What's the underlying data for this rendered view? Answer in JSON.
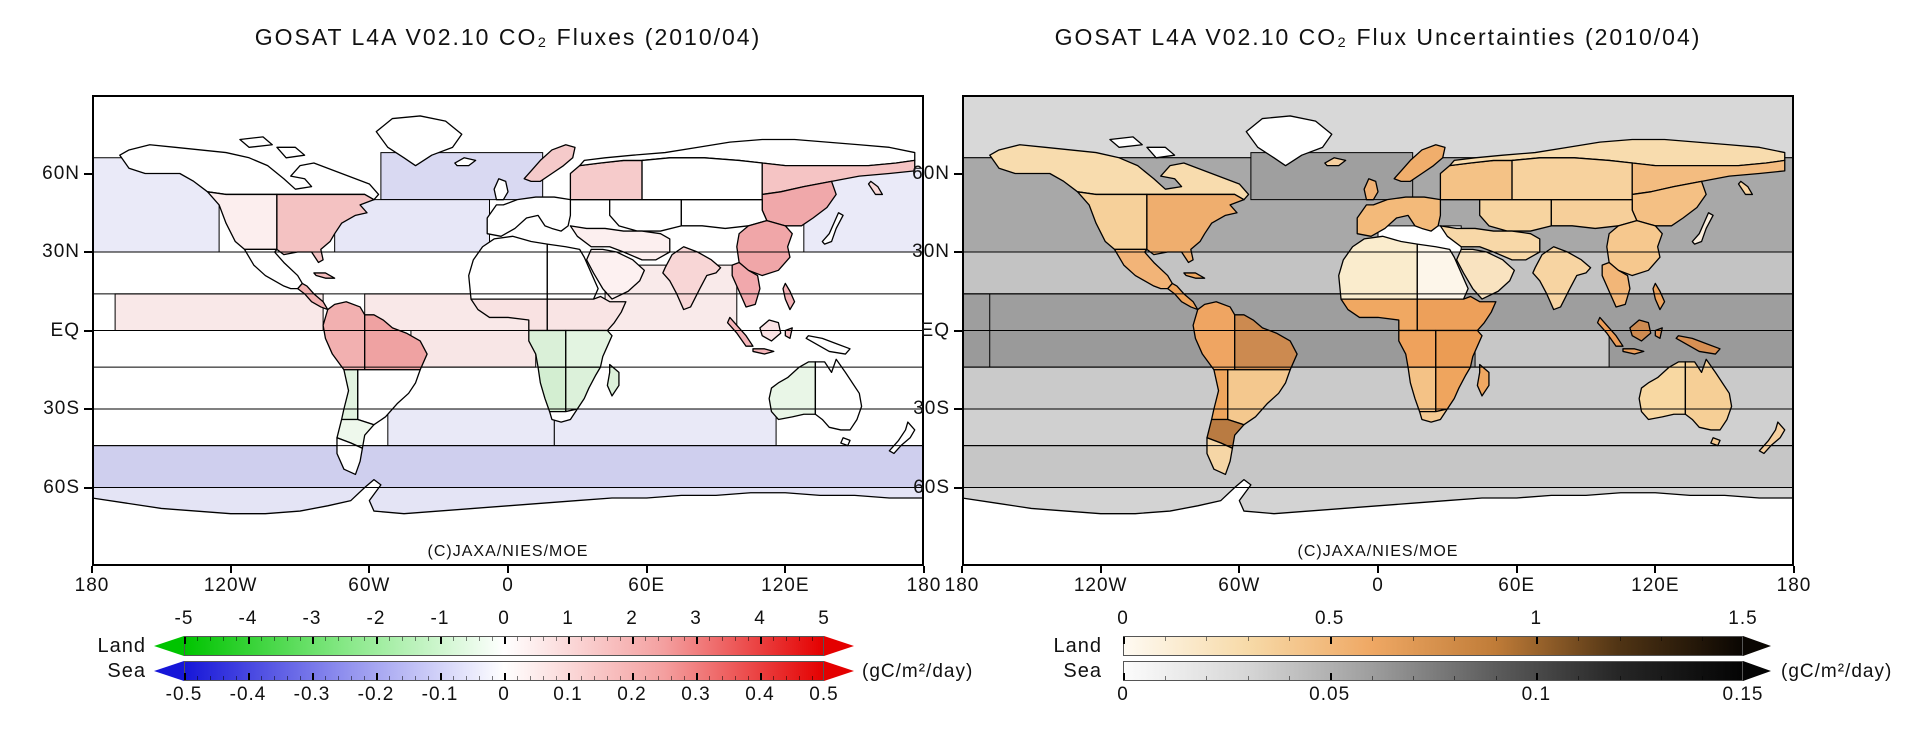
{
  "chart_data": {
    "type": "choropleth_world_map",
    "panels": [
      {
        "id": "fluxes",
        "title": "GOSAT L4A V02.10 CO₂ Fluxes (2010/04)",
        "copyright": "(C)JAXA/NIES/MOE",
        "units": "(gC/m²/day)",
        "x_ticks": [
          "180",
          "120W",
          "60W",
          "0",
          "60E",
          "120E",
          "180"
        ],
        "y_ticks": [
          "60N",
          "30N",
          "EQ",
          "30S",
          "60S"
        ],
        "land_scale": {
          "label": "Land",
          "min": -5,
          "max": 5,
          "ticks": [
            "-5",
            "-4",
            "-3",
            "-2",
            "-1",
            "0",
            "1",
            "2",
            "3",
            "4",
            "5"
          ],
          "gradient": [
            "#00c400",
            "#86e886",
            "#ffffff",
            "#f4a0a0",
            "#e40000"
          ],
          "arrow_left": true,
          "arrow_right": true
        },
        "sea_scale": {
          "label": "Sea",
          "min": -0.5,
          "max": 0.5,
          "ticks": [
            "-0.5",
            "-0.4",
            "-0.3",
            "-0.2",
            "-0.1",
            "0",
            "0.1",
            "0.2",
            "0.3",
            "0.4",
            "0.5"
          ],
          "gradient": [
            "#1616d8",
            "#9090ee",
            "#ffffff",
            "#f4a0a0",
            "#e40000"
          ],
          "arrow_left": true,
          "arrow_right": true
        },
        "ocean_bands": {
          "npac_w": {
            "color": "#eaeaf8",
            "value": -0.07
          },
          "npac_e": {
            "color": "#eaeaf8",
            "value": -0.07
          },
          "natl_hi": {
            "color": "#d9d9f2",
            "value": -0.13
          },
          "natl_mid": {
            "color": "#e7e7f7",
            "value": -0.06
          },
          "eqn_epac": {
            "color": "#f9e8e8",
            "value": 0.04
          },
          "eqn_atl": {
            "color": "#f9e8e8",
            "value": 0.04
          },
          "eqs_atl": {
            "color": "#f8e6e6",
            "value": 0.05
          },
          "ind_n": {
            "color": "#f9eaea",
            "value": 0.035
          },
          "ind_s": {
            "color": "#e9e9f7",
            "value": -0.055
          },
          "satl_s": {
            "color": "#e9e9f7",
            "value": -0.055
          },
          "subant": {
            "color": "#cfcfee",
            "value": -0.15
          },
          "antc": {
            "color": "#e4e4f5",
            "value": -0.08
          }
        },
        "regions": {
          "antarctica": {
            "color": "#ffffff",
            "value": 0
          },
          "greenland": {
            "color": "#ffffff",
            "value": 0
          },
          "iceland": {
            "color": "#ffffff",
            "value": 0
          },
          "arctic1": {
            "color": "#ffffff",
            "value": 0
          },
          "arctic2": {
            "color": "#ffffff",
            "value": 0
          },
          "na_boreal": {
            "color": "#ffffff",
            "value": 0
          },
          "na_west": {
            "color": "#fceeee",
            "value": 0.3
          },
          "na_east": {
            "color": "#f4c2c2",
            "value": 1.4
          },
          "mexico": {
            "color": "#ffffff",
            "value": 0
          },
          "cam": {
            "color": "#f3b2b2",
            "value": 1.9
          },
          "cuba": {
            "color": "#f5bcbc",
            "value": 1.6
          },
          "sa_nw": {
            "color": "#f2b0b0",
            "value": 2.0
          },
          "sa_ne": {
            "color": "#efa2a2",
            "value": 2.5
          },
          "sa_sw": {
            "color": "#e2f3e0",
            "value": -0.7
          },
          "sa_se": {
            "color": "#ffffff",
            "value": 0
          },
          "sa_scone": {
            "color": "#eef8ec",
            "value": -0.2
          },
          "patagonia": {
            "color": "#ffffff",
            "value": 0
          },
          "af_sahara_w": {
            "color": "#ffffff",
            "value": 0
          },
          "af_sahara_e": {
            "color": "#ffffff",
            "value": 0
          },
          "af_sahel_w": {
            "color": "#f9e2e2",
            "value": 0.5
          },
          "af_sahel_e": {
            "color": "#f9e4e4",
            "value": 0.5
          },
          "af_eq_w": {
            "color": "#daf0d8",
            "value": -0.9
          },
          "af_eq_e": {
            "color": "#e3f4e1",
            "value": -0.6
          },
          "af_s_w": {
            "color": "#d3eed1",
            "value": -1.1
          },
          "af_s_e": {
            "color": "#dcf1da",
            "value": -0.85
          },
          "af_cape": {
            "color": "#ffffff",
            "value": 0
          },
          "madagascar": {
            "color": "#dcf1da",
            "value": -0.85
          },
          "eu_west": {
            "color": "#ffffff",
            "value": 0
          },
          "uk": {
            "color": "#ffffff",
            "value": 0
          },
          "scand": {
            "color": "#f5caca",
            "value": 1.2
          },
          "russia_w": {
            "color": "#f6cbcb",
            "value": 1.2
          },
          "siberia_bor": {
            "color": "#ffffff",
            "value": 0
          },
          "siberia_c": {
            "color": "#ffffff",
            "value": 0
          },
          "siberia_e": {
            "color": "#f5c4c4",
            "value": 1.3
          },
          "easia_n": {
            "color": "#f0a8aa",
            "value": 2.2
          },
          "kamchatka": {
            "color": "#f8d8d8",
            "value": 0.8
          },
          "c_asia": {
            "color": "#ffffff",
            "value": 0
          },
          "mongolia": {
            "color": "#ffffff",
            "value": 0
          },
          "china": {
            "color": "#f0a6a8",
            "value": 2.3
          },
          "seasia": {
            "color": "#f1a8ac",
            "value": 2.2
          },
          "india": {
            "color": "#f8d6d6",
            "value": 0.8
          },
          "arabia": {
            "color": "#fdf1f1",
            "value": 0.15
          },
          "iran": {
            "color": "#fcefef",
            "value": 0.2
          },
          "japan": {
            "color": "#ffffff",
            "value": 0
          },
          "sumatra": {
            "color": "#f4b4b8",
            "value": 1.8
          },
          "java": {
            "color": "#f4b4b8",
            "value": 1.8
          },
          "borneo": {
            "color": "#fae3e5",
            "value": 0.4
          },
          "sulawesi": {
            "color": "#f6c2c6",
            "value": 1.4
          },
          "newguinea": {
            "color": "#ffffff",
            "value": 0
          },
          "philippines": {
            "color": "#f4b2b6",
            "value": 1.8
          },
          "australia_w": {
            "color": "#e9f6e7",
            "value": -0.45
          },
          "australia_e": {
            "color": "#ffffff",
            "value": 0
          },
          "tasmania": {
            "color": "#ffffff",
            "value": 0
          },
          "nz": {
            "color": "#ffffff",
            "value": 0
          }
        }
      },
      {
        "id": "uncertainties",
        "title": "GOSAT L4A V02.10 CO₂ Flux Uncertainties (2010/04)",
        "copyright": "(C)JAXA/NIES/MOE",
        "units": "(gC/m²/day)",
        "x_ticks": [
          "180",
          "120W",
          "60W",
          "0",
          "60E",
          "120E",
          "180"
        ],
        "y_ticks": [
          "60N",
          "30N",
          "EQ",
          "30S",
          "60S"
        ],
        "land_scale": {
          "label": "Land",
          "min": 0,
          "max": 1.5,
          "ticks": [
            "0",
            "0.5",
            "1",
            "1.5"
          ],
          "gradient": [
            "#fefaf2",
            "#f7daa8",
            "#efa864",
            "#c07c38",
            "#503414",
            "#0a0602"
          ],
          "arrow_left": false,
          "arrow_right": true
        },
        "sea_scale": {
          "label": "Sea",
          "min": 0,
          "max": 0.15,
          "ticks": [
            "0",
            "0.05",
            "0.1",
            "0.15"
          ],
          "gradient": [
            "#fcfcfc",
            "#d6d6d6",
            "#9e9e9e",
            "#5c5c5c",
            "#262626",
            "#040404"
          ],
          "arrow_left": false,
          "arrow_right": true
        },
        "ocean_bands": {
          "arctic": {
            "color": "#d8d8d8",
            "value": 0.02
          },
          "n3066": {
            "color": "#a8a8a8",
            "value": 0.085
          },
          "natl_hi": {
            "color": "#9f9f9f",
            "value": 0.095
          },
          "med": {
            "color": "#ffffff",
            "value": 0
          },
          "b1430n": {
            "color": "#c3c3c3",
            "value": 0.05
          },
          "eqn": {
            "color": "#9e9e9e",
            "value": 0.085
          },
          "eqs": {
            "color": "#9a9a9a",
            "value": 0.09
          },
          "ind_eqs": {
            "color": "#c7c7c7",
            "value": 0.05
          },
          "b1430s": {
            "color": "#cacaca",
            "value": 0.045
          },
          "b3044s": {
            "color": "#d0d0d0",
            "value": 0.04
          },
          "b4460s": {
            "color": "#c6c6c6",
            "value": 0.055
          },
          "b60s": {
            "color": "#d3d3d3",
            "value": 0.035
          }
        },
        "regions": {
          "antarctica": {
            "color": "#ffffff",
            "value": 0
          },
          "greenland": {
            "color": "#ffffff",
            "value": 0
          },
          "iceland": {
            "color": "#f6d0a0",
            "value": 0.4
          },
          "arctic1": {
            "color": "#ffffff",
            "value": 0
          },
          "arctic2": {
            "color": "#ffffff",
            "value": 0
          },
          "na_boreal": {
            "color": "#f8dcae",
            "value": 0.3
          },
          "na_west": {
            "color": "#f6d09a",
            "value": 0.45
          },
          "na_east": {
            "color": "#efae6e",
            "value": 0.65
          },
          "mexico": {
            "color": "#f2b478",
            "value": 0.6
          },
          "cam": {
            "color": "#efa55e",
            "value": 0.7
          },
          "cuba": {
            "color": "#f0a860",
            "value": 0.65
          },
          "sa_nw": {
            "color": "#efa562",
            "value": 0.7
          },
          "sa_ne": {
            "color": "#cc8a50",
            "value": 1.0
          },
          "sa_sw": {
            "color": "#efa65e",
            "value": 0.7
          },
          "sa_se": {
            "color": "#f4c88e",
            "value": 0.5
          },
          "sa_scone": {
            "color": "#b97b42",
            "value": 1.15
          },
          "patagonia": {
            "color": "#f6d6a6",
            "value": 0.4
          },
          "af_sahara_w": {
            "color": "#faeccd",
            "value": 0.15
          },
          "af_sahara_e": {
            "color": "#fdf6ea",
            "value": 0.05
          },
          "af_sahel_w": {
            "color": "#f0a862",
            "value": 0.68
          },
          "af_sahel_e": {
            "color": "#eda05a",
            "value": 0.72
          },
          "af_eq_w": {
            "color": "#efa25c",
            "value": 0.7
          },
          "af_eq_e": {
            "color": "#eb9c54",
            "value": 0.75
          },
          "af_s_w": {
            "color": "#f4c286",
            "value": 0.5
          },
          "af_s_e": {
            "color": "#efa55e",
            "value": 0.7
          },
          "af_cape": {
            "color": "#f5ca92",
            "value": 0.45
          },
          "madagascar": {
            "color": "#f0a862",
            "value": 0.68
          },
          "eu_west": {
            "color": "#f3ba7a",
            "value": 0.55
          },
          "uk": {
            "color": "#f1b274",
            "value": 0.6
          },
          "scand": {
            "color": "#f0ae6c",
            "value": 0.62
          },
          "russia_w": {
            "color": "#f4c286",
            "value": 0.5
          },
          "siberia_bor": {
            "color": "#f8dcae",
            "value": 0.3
          },
          "siberia_c": {
            "color": "#f7d29e",
            "value": 0.42
          },
          "siberia_e": {
            "color": "#f3bc80",
            "value": 0.55
          },
          "easia_n": {
            "color": "#f4c084",
            "value": 0.52
          },
          "kamchatka": {
            "color": "#f7d4a2",
            "value": 0.4
          },
          "c_asia": {
            "color": "#f7d4a0",
            "value": 0.4
          },
          "mongolia": {
            "color": "#f6cf9a",
            "value": 0.45
          },
          "china": {
            "color": "#f6c88e",
            "value": 0.48
          },
          "seasia": {
            "color": "#f2b678",
            "value": 0.58
          },
          "india": {
            "color": "#f7d4a2",
            "value": 0.4
          },
          "arabia": {
            "color": "#f9e3c0",
            "value": 0.2
          },
          "iran": {
            "color": "#f8d8a8",
            "value": 0.35
          },
          "japan": {
            "color": "#fbeedd",
            "value": 0.08
          },
          "sumatra": {
            "color": "#ec9e5a",
            "value": 0.75
          },
          "java": {
            "color": "#ec9e5a",
            "value": 0.75
          },
          "borneo": {
            "color": "#cd8b51",
            "value": 1.0
          },
          "sulawesi": {
            "color": "#e09457",
            "value": 0.85
          },
          "newguinea": {
            "color": "#d89054",
            "value": 0.9
          },
          "philippines": {
            "color": "#efa55e",
            "value": 0.7
          },
          "australia_w": {
            "color": "#f8d8a2",
            "value": 0.38
          },
          "australia_e": {
            "color": "#f6cf96",
            "value": 0.45
          },
          "tasmania": {
            "color": "#f5ca92",
            "value": 0.45
          },
          "nz": {
            "color": "#f6d0a0",
            "value": 0.4
          }
        }
      }
    ]
  }
}
